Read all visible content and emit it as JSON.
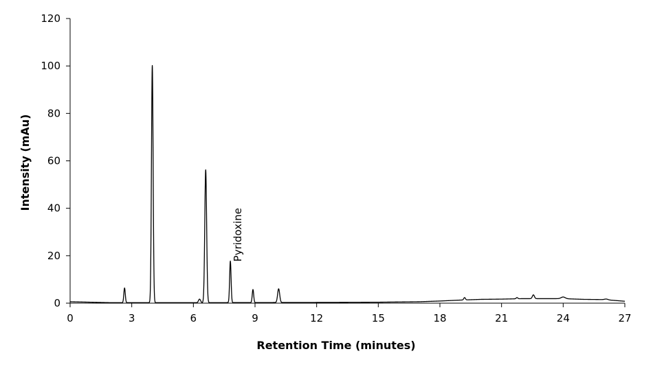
{
  "chart_data": {
    "type": "line",
    "title": "",
    "xlabel": "Retention Time (minutes)",
    "ylabel": "Intensity (mAu)",
    "xlim": [
      0,
      27
    ],
    "ylim": [
      0,
      120
    ],
    "xticks": [
      0,
      3,
      6,
      9,
      12,
      15,
      18,
      21,
      24,
      27
    ],
    "yticks": [
      0,
      20,
      40,
      60,
      80,
      100,
      120
    ],
    "grid": false,
    "legend": "none",
    "line_color": "#000000",
    "baseline": [
      [
        0,
        0.6
      ],
      [
        1.0,
        0.4
      ],
      [
        2.0,
        0.2
      ],
      [
        6.0,
        0.2
      ],
      [
        12.0,
        0.3
      ],
      [
        15.0,
        0.4
      ],
      [
        17.0,
        0.6
      ],
      [
        18.0,
        0.9
      ],
      [
        19.0,
        1.3
      ],
      [
        20.0,
        1.6
      ],
      [
        21.0,
        1.7
      ],
      [
        22.0,
        1.9
      ],
      [
        23.0,
        1.9
      ],
      [
        24.0,
        1.9
      ],
      [
        25.0,
        1.6
      ],
      [
        26.0,
        1.5
      ],
      [
        27.0,
        0.8
      ]
    ],
    "peaks": [
      {
        "rt": 2.65,
        "height": 6.2,
        "width": 0.035
      },
      {
        "rt": 4.0,
        "height": 100.0,
        "width": 0.04
      },
      {
        "rt": 6.3,
        "height": 1.5,
        "width": 0.05
      },
      {
        "rt": 6.6,
        "height": 56.0,
        "width": 0.045
      },
      {
        "rt": 7.8,
        "height": 17.5,
        "width": 0.035
      },
      {
        "rt": 8.9,
        "height": 5.5,
        "width": 0.035
      },
      {
        "rt": 10.15,
        "height": 5.8,
        "width": 0.05
      },
      {
        "rt": 19.2,
        "height": 1.0,
        "width": 0.04
      },
      {
        "rt": 21.75,
        "height": 0.5,
        "width": 0.04
      },
      {
        "rt": 22.55,
        "height": 1.6,
        "width": 0.05
      },
      {
        "rt": 24.0,
        "height": 0.7,
        "width": 0.1
      },
      {
        "rt": 26.1,
        "height": 0.3,
        "width": 0.08
      }
    ],
    "annotations": [
      {
        "text": "Pyridoxine",
        "x": 7.8,
        "y": 17.5
      }
    ]
  }
}
